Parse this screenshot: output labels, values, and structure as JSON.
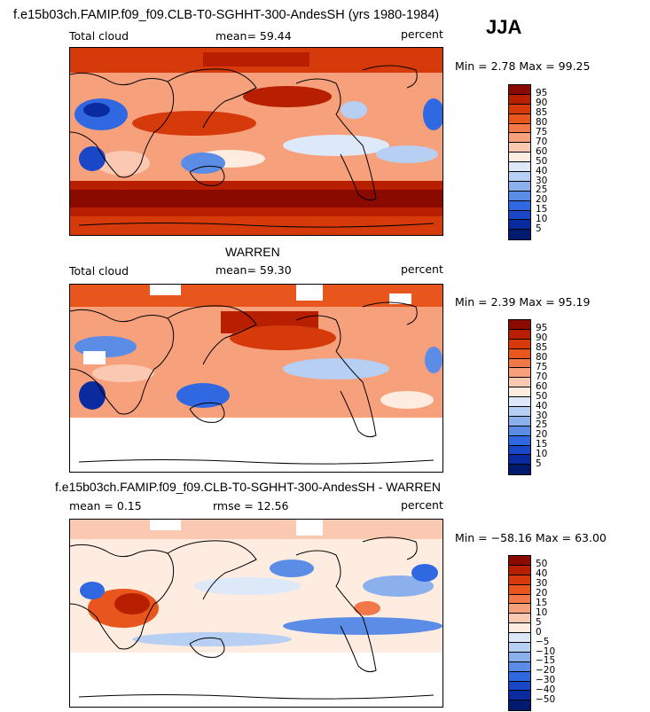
{
  "figure": {
    "title": "f.e15b03ch.FAMIP.f09_f09.CLB-T0-SGHHT-300-AndesSH (yrs 1980-1984)",
    "season": "JJA"
  },
  "panels": [
    {
      "id": "model",
      "left_label": "Total cloud",
      "mean_text": "mean=   59.44",
      "units": "percent",
      "minmax": "Min =    2.78  Max =   99.25",
      "scale": "abs"
    },
    {
      "id": "obs",
      "heading": "WARREN",
      "left_label": "Total cloud",
      "mean_text": "mean=   59.30",
      "units": "percent",
      "minmax": "Min =    2.39  Max =   95.19",
      "scale": "abs"
    },
    {
      "id": "diff",
      "heading": "f.e15b03ch.FAMIP.f09_f09.CLB-T0-SGHHT-300-AndesSH - WARREN",
      "left_label": "mean =      0.15",
      "mean_text": "rmse =    12.56",
      "units": "percent",
      "minmax": "Min = −58.16  Max =   63.00",
      "scale": "diff"
    }
  ],
  "colorbars": {
    "abs": {
      "levels": [
        "95",
        "90",
        "85",
        "80",
        "75",
        "70",
        "60",
        "50",
        "40",
        "30",
        "25",
        "20",
        "15",
        "10",
        "5"
      ],
      "colors": [
        "#8b0a00",
        "#b81e00",
        "#d63a0a",
        "#e8561e",
        "#f2784a",
        "#f7a07c",
        "#fbc9b2",
        "#fdecdf",
        "#dde8f8",
        "#b7cff2",
        "#8cb0ec",
        "#5b8ce6",
        "#2f68e0",
        "#1a46c8",
        "#0a2aa0",
        "#001a70"
      ]
    },
    "diff": {
      "levels": [
        "50",
        "40",
        "30",
        "20",
        "15",
        "10",
        "5",
        "0",
        "−5",
        "−10",
        "−15",
        "−20",
        "−30",
        "−40",
        "−50"
      ],
      "colors": [
        "#8b0a00",
        "#b81e00",
        "#d63a0a",
        "#e8561e",
        "#f2784a",
        "#f7a07c",
        "#fbc9b2",
        "#fdecdf",
        "#dde8f8",
        "#b7cff2",
        "#8cb0ec",
        "#5b8ce6",
        "#2f68e0",
        "#1a46c8",
        "#0a2aa0",
        "#001a70"
      ]
    }
  }
}
